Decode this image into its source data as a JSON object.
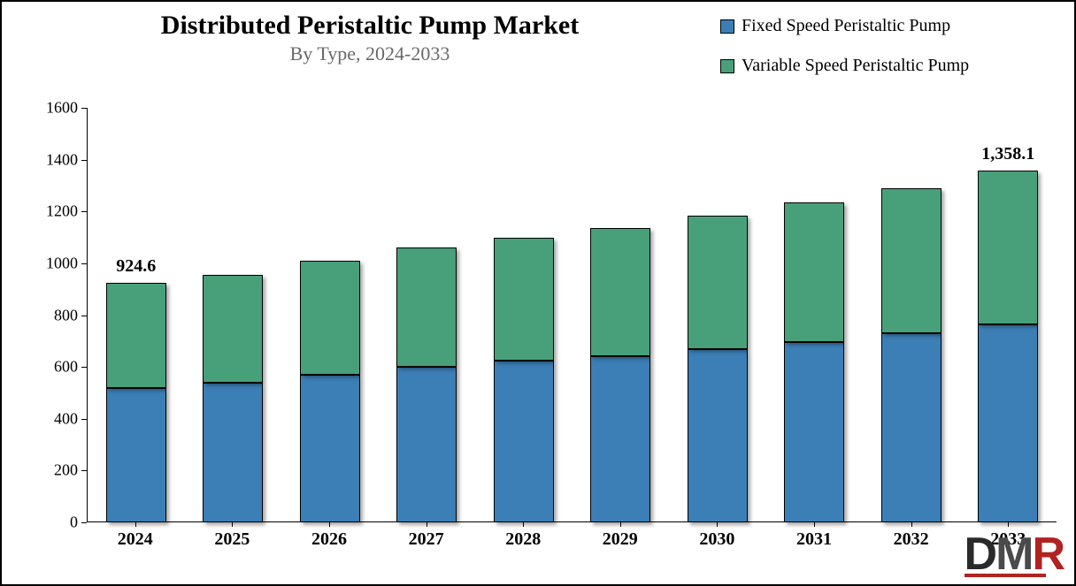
{
  "chart": {
    "type": "stacked-bar",
    "title": "Distributed Peristaltic Pump Market",
    "subtitle": "By Type, 2024-2033",
    "title_fontsize": 30,
    "subtitle_fontsize": 22,
    "subtitle_color": "#696969",
    "background_color": "#ffffff",
    "border_color": "#000000",
    "ylim": [
      0,
      1600
    ],
    "ytick_step": 200,
    "yticks": [
      0,
      200,
      400,
      600,
      800,
      1000,
      1200,
      1400,
      1600
    ],
    "categories": [
      "2024",
      "2025",
      "2026",
      "2027",
      "2028",
      "2029",
      "2030",
      "2031",
      "2032",
      "2033"
    ],
    "series": [
      {
        "name": "Fixed Speed Peristaltic Pump",
        "color": "#3b7fb6",
        "values": [
          520,
          540,
          570,
          600,
          625,
          640,
          670,
          695,
          730,
          765
        ]
      },
      {
        "name": "Variable Speed Peristaltic Pump",
        "color": "#48a07a",
        "values": [
          404.6,
          415,
          440,
          460,
          475,
          495,
          515,
          540,
          560,
          593.1
        ]
      }
    ],
    "data_labels": [
      {
        "category_index": 0,
        "text": "924.6"
      },
      {
        "category_index": 9,
        "text": "1,358.1"
      }
    ],
    "bar_width": 0.62,
    "bar_border_color": "#000000",
    "bar_shadow": true,
    "axis_color": "#000000",
    "label_fontsize": 20,
    "label_fontweight": "bold"
  },
  "legend": {
    "items": [
      {
        "label": "Fixed Speed Peristaltic Pump",
        "color": "#3b7fb6"
      },
      {
        "label": "Variable Speed Peristaltic Pump",
        "color": "#48a07a"
      }
    ],
    "fontsize": 20,
    "position": "top-right"
  },
  "logo": {
    "letters": [
      "D",
      "M",
      "R"
    ],
    "colors": [
      "#2a2a2a",
      "#4a4a4a",
      "#b22222"
    ],
    "underline_color": "#b22222"
  }
}
